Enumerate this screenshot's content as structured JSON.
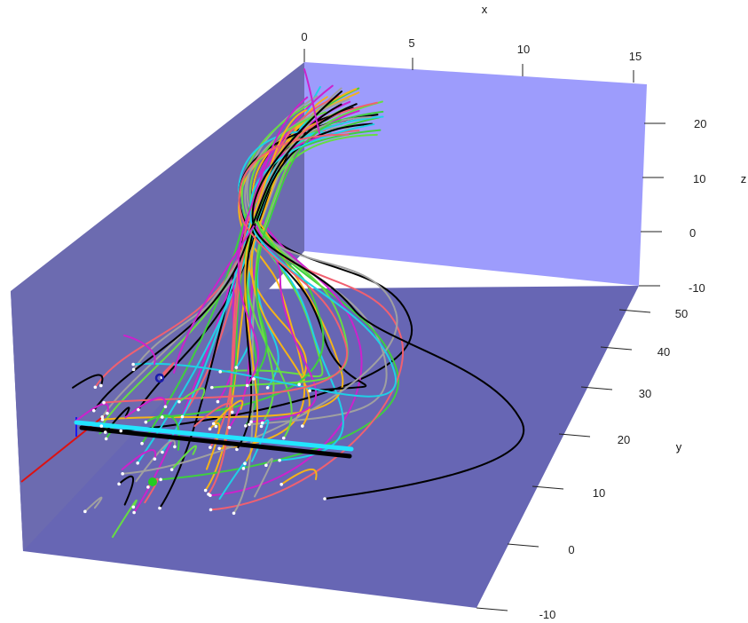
{
  "figure": {
    "x_axis": {
      "title": "x",
      "ticks": [
        "0",
        "5",
        "10",
        "15"
      ]
    },
    "y_axis": {
      "title": "y",
      "ticks": [
        "-10",
        "0",
        "10",
        "20",
        "30",
        "40",
        "50"
      ]
    },
    "z_axis": {
      "title": "z",
      "ticks": [
        "-10",
        "0",
        "10",
        "20"
      ]
    },
    "colors": {
      "back_wall": "#9d9cfc",
      "side_wall": "#6c6bb0",
      "floor": "#6766b4",
      "seed_point": "#ffffff",
      "stream_palette": [
        "#f5b318",
        "#3fcf3f",
        "#1fd0e6",
        "#000000",
        "#cc22cc",
        "#f06070",
        "#a0a0a0",
        "#66dd44"
      ]
    },
    "markers": {
      "start_marker_color": "#22cc22",
      "end_marker_color": "#1a1aaa",
      "bar_colors": [
        "#000000",
        "#22e5ff"
      ],
      "axis_line_color": "#dd1111"
    }
  }
}
